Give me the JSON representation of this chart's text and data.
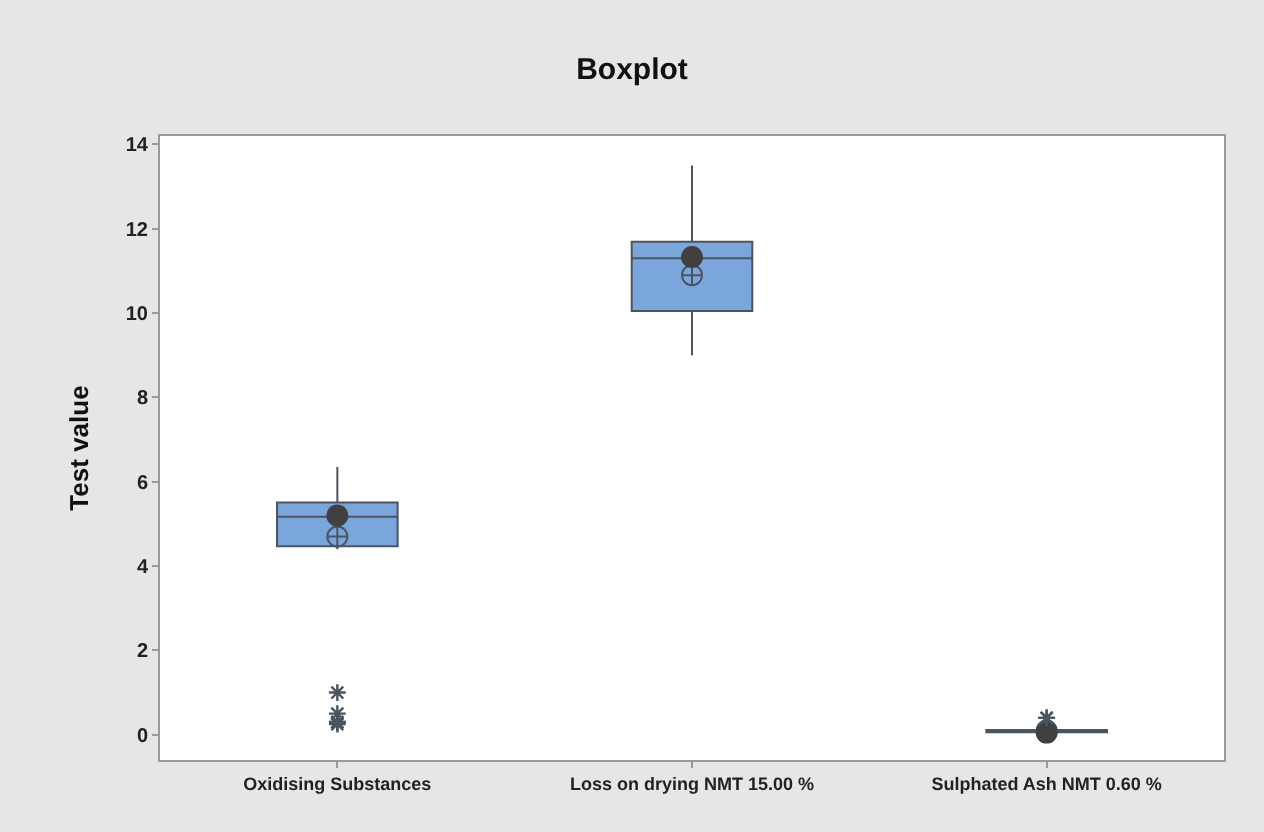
{
  "chart_data": {
    "type": "box",
    "title": "Boxplot",
    "ylabel": "Test value",
    "categories": [
      "Oxidising Substances",
      "Loss on drying NMT 15.00 %",
      "Sulphated Ash NMT 0.60 %"
    ],
    "series": [
      {
        "color": "#7aa6dc",
        "boxes": [
          {
            "low": 4.4,
            "q1": 4.47,
            "median": 5.17,
            "q3": 5.51,
            "high": 6.35,
            "mean": 4.7,
            "outliers": [
              1.0,
              0.5,
              0.3,
              0.3,
              0.25
            ]
          },
          {
            "low": 9.0,
            "q1": 10.05,
            "median": 11.3,
            "q3": 11.69,
            "high": 13.5,
            "mean": 10.9
          },
          {
            "low": 0.03,
            "q1": 0.06,
            "median": 0.08,
            "q3": 0.11,
            "high": 0.18,
            "mean": 0.1,
            "outliers": [
              0.4,
              0.4
            ]
          }
        ]
      },
      {
        "type": "scatter",
        "color": "#404040",
        "x": [
          "Oxidising Substances",
          "Loss on drying NMT 15.00 %",
          "Sulphated Ash NMT 0.60 %"
        ],
        "values": [
          5.2,
          11.33,
          0.05
        ]
      }
    ],
    "ylim": [
      -0.6,
      14.2
    ],
    "yticks": [
      0,
      2,
      4,
      6,
      8,
      10,
      12,
      14
    ],
    "grid": false,
    "marker": "circle"
  }
}
